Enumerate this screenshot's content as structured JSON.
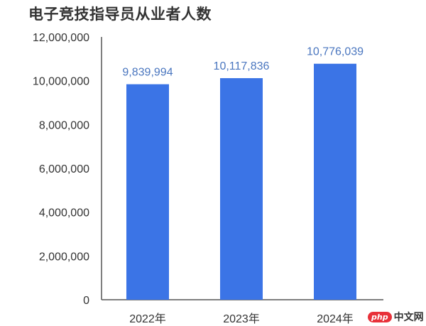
{
  "chart_data": {
    "type": "bar",
    "title": "电子竞技指导员从业者人数",
    "categories": [
      "2022年",
      "2023年",
      "2024年"
    ],
    "values": [
      9839994,
      10117836,
      10776039
    ],
    "data_labels": [
      "9,839,994",
      "10,117,836",
      "10,776,039"
    ],
    "ylim": [
      0,
      12000000
    ],
    "yticks": [
      0,
      2000000,
      4000000,
      6000000,
      8000000,
      10000000,
      12000000
    ],
    "ytick_labels": [
      "0",
      "2,000,000",
      "4,000,000",
      "6,000,000",
      "8,000,000",
      "10,000,000",
      "12,000,000"
    ],
    "grid": false,
    "xlabel": "",
    "ylabel": "",
    "colors": {
      "bar": "#3b74e6",
      "data_label": "#4a76bf",
      "axis": "#555555",
      "tick_label": "#333333"
    }
  },
  "watermark": {
    "logo": "php",
    "text": "中文网"
  }
}
